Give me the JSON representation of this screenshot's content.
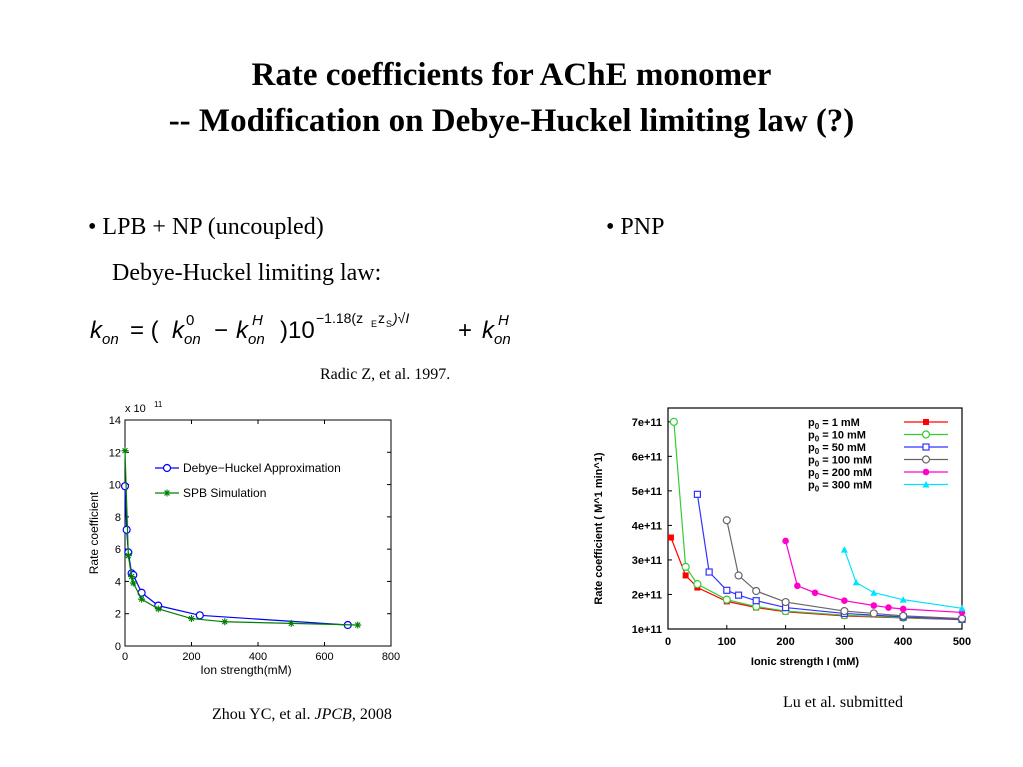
{
  "slide": {
    "title_line1": "Rate coefficients for AChE monomer",
    "title_line2": "-- Modification on Debye-Huckel  limiting law (?)",
    "bullet_left": "•  LPB + NP  (uncoupled)",
    "bullet_left_sub": "Debye-Huckel  limiting law:",
    "bullet_right": "•  PNP",
    "formula": {
      "lhs": "k",
      "lhs_sub": "on",
      "eq": "= (",
      "k0": "k",
      "k0_sup": "0",
      "k0_sub": "on",
      "minus": "−",
      "kh": "k",
      "kh_sup": "H",
      "kh_sub": "on",
      "close": ")10",
      "exp": "−1.18(z",
      "exp_sub1": "E",
      "exp_z2": "z",
      "exp_sub2": "S",
      "exp_tail": ")√I",
      "plus": "+ ",
      "kh2": "k",
      "kh2_sup": "H",
      "kh2_sub": "on"
    },
    "cite_radic": "Radic Z, et al. 1997.",
    "cite_zhou_pre": "Zhou YC, et al. ",
    "cite_zhou_journal": "JPCB",
    "cite_zhou_post": ", 2008",
    "cite_lu": "Lu et al. submitted"
  },
  "chart_data": [
    {
      "type": "line",
      "title": "",
      "xlabel": "Ion strength(mM)",
      "ylabel": "Rate coefficient",
      "exponent_label": "x 10",
      "exponent_sup": "11",
      "xlim": [
        0,
        800
      ],
      "ylim": [
        0,
        14
      ],
      "xticks": [
        0,
        200,
        400,
        600,
        800
      ],
      "yticks": [
        0,
        2,
        4,
        6,
        8,
        10,
        12,
        14
      ],
      "legend_position": "top-right",
      "grid": false,
      "series": [
        {
          "name": "Debye−Huckel Approximation",
          "color": "#0000ff",
          "marker": "circle",
          "x": [
            0,
            5,
            10,
            20,
            25,
            50,
            100,
            225,
            670
          ],
          "y": [
            9.9,
            7.2,
            5.8,
            4.5,
            4.4,
            3.3,
            2.5,
            1.9,
            1.3
          ]
        },
        {
          "name": "SPB Simulation",
          "color": "#008000",
          "marker": "asterisk",
          "x": [
            0,
            10,
            20,
            25,
            50,
            100,
            200,
            300,
            500,
            700
          ],
          "y": [
            12.1,
            5.6,
            4.3,
            3.9,
            2.9,
            2.3,
            1.7,
            1.5,
            1.4,
            1.3
          ]
        }
      ]
    },
    {
      "type": "line",
      "title": "",
      "xlabel": "Ionic strength I (mM)",
      "ylabel": "Rate coefficient ( M^1 min^1)",
      "xlim": [
        0,
        500
      ],
      "ylim": [
        1,
        7.4
      ],
      "xticks": [
        0,
        100,
        200,
        300,
        400,
        500
      ],
      "yticks": [
        1,
        2,
        3,
        4,
        5,
        6,
        7
      ],
      "ytick_labels": [
        "1e+11",
        "2e+11",
        "3e+11",
        "4e+11",
        "5e+11",
        "6e+11",
        "7e+11"
      ],
      "legend_position": "top-right",
      "grid": false,
      "series": [
        {
          "name": "p0 =    1 mM",
          "legend_prefix": "p",
          "legend_sub": "0",
          "legend_rest": " =    1 mM",
          "color": "#ff0000",
          "marker": "square-filled",
          "x": [
            5,
            30,
            50,
            100,
            150,
            200,
            300,
            400,
            500
          ],
          "y": [
            3.65,
            2.55,
            2.2,
            1.8,
            1.62,
            1.5,
            1.38,
            1.32,
            1.27
          ]
        },
        {
          "name": "p0 =   10 mM",
          "legend_prefix": "p",
          "legend_sub": "0",
          "legend_rest": " =   10 mM",
          "color": "#33cc33",
          "marker": "circle-open",
          "x": [
            10,
            30,
            50,
            100,
            150,
            200,
            300,
            400,
            500
          ],
          "y": [
            7.0,
            2.8,
            2.3,
            1.85,
            1.65,
            1.52,
            1.4,
            1.33,
            1.28
          ]
        },
        {
          "name": "p0 =   50 mM",
          "legend_prefix": "p",
          "legend_sub": "0",
          "legend_rest": " =   50 mM",
          "color": "#3333ff",
          "marker": "square-open",
          "x": [
            50,
            70,
            100,
            120,
            150,
            200,
            300,
            400,
            500
          ],
          "y": [
            4.9,
            2.65,
            2.12,
            1.98,
            1.82,
            1.62,
            1.45,
            1.35,
            1.28
          ]
        },
        {
          "name": "p0 = 100 mM",
          "legend_prefix": "p",
          "legend_sub": "0",
          "legend_rest": " = 100 mM",
          "color": "#666666",
          "marker": "circle-open",
          "x": [
            100,
            120,
            150,
            200,
            300,
            350,
            400,
            500
          ],
          "y": [
            4.15,
            2.55,
            2.1,
            1.78,
            1.52,
            1.45,
            1.38,
            1.3
          ]
        },
        {
          "name": "p0 = 200 mM",
          "legend_prefix": "p",
          "legend_sub": "0",
          "legend_rest": " = 200 mM",
          "color": "#ff00cc",
          "marker": "circle-filled",
          "x": [
            200,
            220,
            250,
            300,
            350,
            375,
            400,
            500
          ],
          "y": [
            3.55,
            2.25,
            2.05,
            1.82,
            1.68,
            1.62,
            1.58,
            1.48
          ]
        },
        {
          "name": "p0 = 300 mM",
          "legend_prefix": "p",
          "legend_sub": "0",
          "legend_rest": " = 300 mM",
          "color": "#00e5ff",
          "marker": "triangle",
          "x": [
            300,
            320,
            350,
            400,
            500
          ],
          "y": [
            3.3,
            2.35,
            2.05,
            1.85,
            1.6
          ]
        }
      ]
    }
  ]
}
